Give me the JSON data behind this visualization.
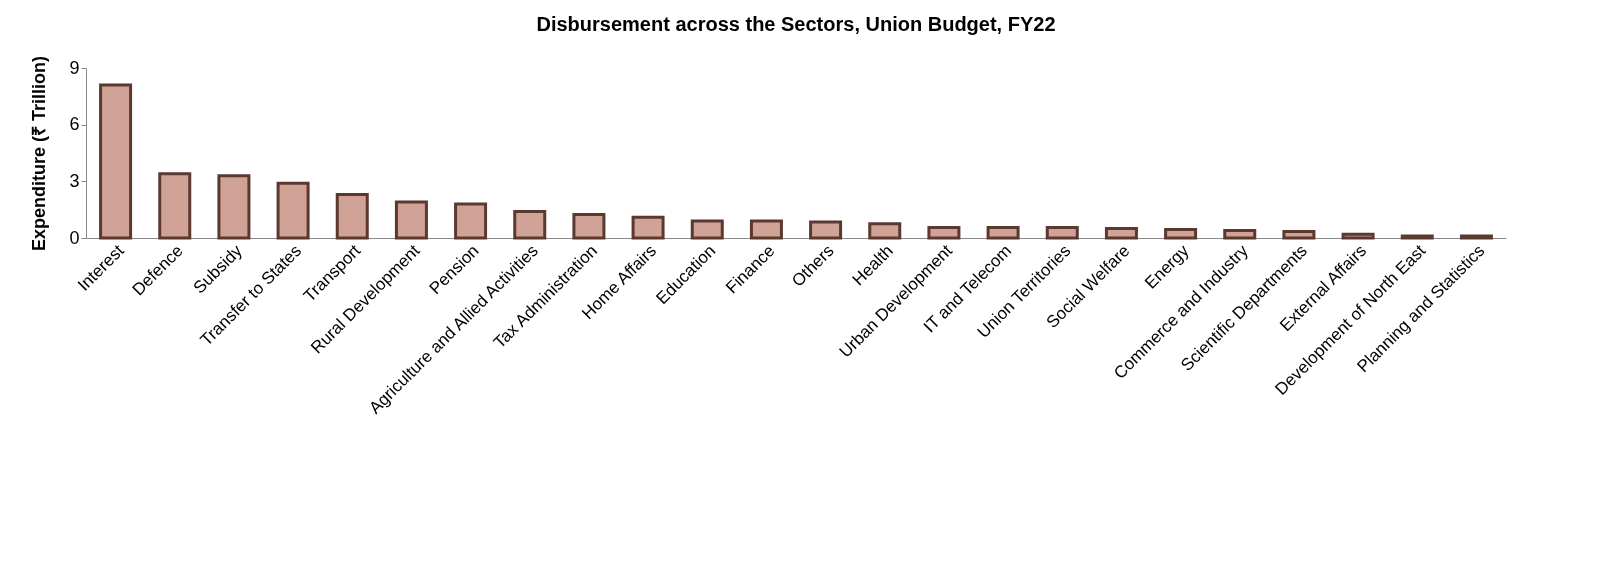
{
  "chart_data": {
    "type": "bar",
    "title": "Disbursement across the Sectors, Union Budget, FY22",
    "ylabel": "Expenditure (₹ Trillion)",
    "categories": [
      "Interest",
      "Defence",
      "Subsidy",
      "Transfer to States",
      "Transport",
      "Rural Development",
      "Pension",
      "Agriculture and Allied Activities",
      "Tax Administration",
      "Home Affairs",
      "Education",
      "Finance",
      "Others",
      "Health",
      "Urban Development",
      "IT and Telecom",
      "Union Territories",
      "Social Welfare",
      "Energy",
      "Commerce and Industry",
      "Scientific Departments",
      "External Affairs",
      "Development of North East",
      "Planning and Statistics"
    ],
    "values": [
      8.1,
      3.4,
      3.3,
      2.9,
      2.3,
      1.9,
      1.8,
      1.4,
      1.25,
      1.1,
      0.9,
      0.9,
      0.85,
      0.75,
      0.55,
      0.55,
      0.55,
      0.5,
      0.45,
      0.4,
      0.35,
      0.2,
      0.1,
      0.1
    ],
    "color": "#d1a397",
    "ylim": [
      0,
      9
    ],
    "yticks": [
      0,
      3,
      6,
      9
    ],
    "grid": false
  }
}
